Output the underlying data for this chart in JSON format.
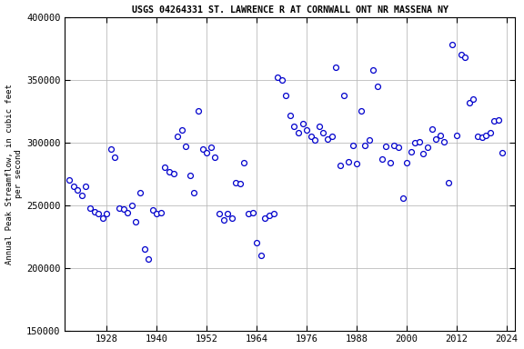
{
  "title": "USGS 04264331 ST. LAWRENCE R AT CORNWALL ONT NR MASSENA NY",
  "ylabel": "Annual Peak Streamflow, in cubic feet\nper second",
  "xlim": [
    1918,
    2026
  ],
  "ylim": [
    150000,
    400000
  ],
  "yticks": [
    150000,
    200000,
    250000,
    300000,
    350000,
    400000
  ],
  "xticks": [
    1928,
    1940,
    1952,
    1964,
    1976,
    1988,
    2000,
    2012,
    2024
  ],
  "marker_color": "#0000cc",
  "marker_facecolor": "white",
  "background_color": "#ffffff",
  "grid_color": "#bbbbbb",
  "data": [
    [
      1919,
      270000
    ],
    [
      1920,
      265000
    ],
    [
      1921,
      262000
    ],
    [
      1922,
      258000
    ],
    [
      1923,
      265000
    ],
    [
      1924,
      248000
    ],
    [
      1925,
      245000
    ],
    [
      1926,
      243000
    ],
    [
      1927,
      240000
    ],
    [
      1928,
      243000
    ],
    [
      1929,
      295000
    ],
    [
      1930,
      288000
    ],
    [
      1931,
      248000
    ],
    [
      1932,
      247000
    ],
    [
      1933,
      244000
    ],
    [
      1934,
      250000
    ],
    [
      1935,
      237000
    ],
    [
      1936,
      260000
    ],
    [
      1937,
      215000
    ],
    [
      1938,
      207000
    ],
    [
      1939,
      246000
    ],
    [
      1940,
      243000
    ],
    [
      1941,
      244000
    ],
    [
      1942,
      280000
    ],
    [
      1943,
      277000
    ],
    [
      1944,
      275000
    ],
    [
      1945,
      305000
    ],
    [
      1946,
      310000
    ],
    [
      1947,
      297000
    ],
    [
      1948,
      274000
    ],
    [
      1949,
      260000
    ],
    [
      1950,
      325000
    ],
    [
      1951,
      295000
    ],
    [
      1952,
      292000
    ],
    [
      1953,
      296000
    ],
    [
      1954,
      288000
    ],
    [
      1955,
      243000
    ],
    [
      1956,
      238000
    ],
    [
      1957,
      243000
    ],
    [
      1958,
      240000
    ],
    [
      1959,
      268000
    ],
    [
      1960,
      267000
    ],
    [
      1961,
      284000
    ],
    [
      1962,
      243000
    ],
    [
      1963,
      244000
    ],
    [
      1964,
      220000
    ],
    [
      1965,
      210000
    ],
    [
      1966,
      240000
    ],
    [
      1967,
      242000
    ],
    [
      1968,
      243000
    ],
    [
      1969,
      352000
    ],
    [
      1970,
      350000
    ],
    [
      1971,
      338000
    ],
    [
      1972,
      322000
    ],
    [
      1973,
      313000
    ],
    [
      1974,
      308000
    ],
    [
      1975,
      315000
    ],
    [
      1976,
      310000
    ],
    [
      1977,
      305000
    ],
    [
      1978,
      302000
    ],
    [
      1979,
      313000
    ],
    [
      1980,
      308000
    ],
    [
      1981,
      303000
    ],
    [
      1982,
      305000
    ],
    [
      1983,
      360000
    ],
    [
      1984,
      282000
    ],
    [
      1985,
      338000
    ],
    [
      1986,
      285000
    ],
    [
      1987,
      298000
    ],
    [
      1988,
      283000
    ],
    [
      1989,
      325000
    ],
    [
      1990,
      298000
    ],
    [
      1991,
      302000
    ],
    [
      1992,
      358000
    ],
    [
      1993,
      345000
    ],
    [
      1994,
      287000
    ],
    [
      1995,
      297000
    ],
    [
      1996,
      284000
    ],
    [
      1997,
      298000
    ],
    [
      1998,
      296000
    ],
    [
      1999,
      256000
    ],
    [
      2000,
      284000
    ],
    [
      2001,
      293000
    ],
    [
      2002,
      300000
    ],
    [
      2003,
      301000
    ],
    [
      2004,
      291000
    ],
    [
      2005,
      296000
    ],
    [
      2006,
      311000
    ],
    [
      2007,
      303000
    ],
    [
      2008,
      306000
    ],
    [
      2009,
      301000
    ],
    [
      2010,
      268000
    ],
    [
      2011,
      378000
    ],
    [
      2012,
      306000
    ],
    [
      2013,
      370000
    ],
    [
      2014,
      368000
    ],
    [
      2015,
      332000
    ],
    [
      2016,
      335000
    ],
    [
      2017,
      305000
    ],
    [
      2018,
      304000
    ],
    [
      2019,
      306000
    ],
    [
      2020,
      308000
    ],
    [
      2021,
      317000
    ],
    [
      2022,
      318000
    ],
    [
      2023,
      292000
    ]
  ]
}
